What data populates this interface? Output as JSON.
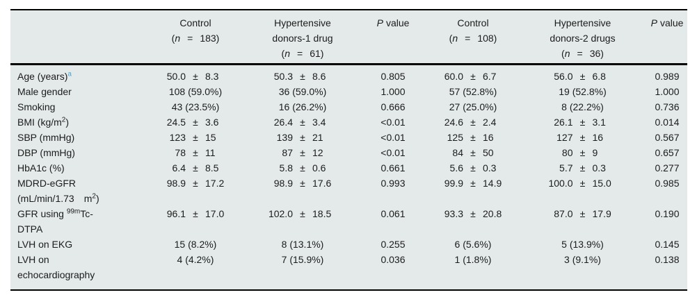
{
  "colors": {
    "table_background": "#e4eaea",
    "rule_color": "#000000",
    "text_color": "#1b1b1b",
    "footnote_marker_blue": "#4aa4cf"
  },
  "sym": {
    "pm": "±",
    "paren_open": "(",
    "paren_close": ")",
    "eq": "=",
    "n": "n"
  },
  "header": {
    "groups": [
      {
        "line1": "Control",
        "n": "183"
      },
      {
        "line1": "Hypertensive",
        "line2": "donors-1 drug",
        "n": "61"
      },
      {
        "line1": "Control",
        "n": "108"
      },
      {
        "line1": "Hypertensive",
        "line2": "donors-2 drugs",
        "n": "36"
      }
    ],
    "p1": {
      "p": "P",
      "label": "value"
    },
    "p2": {
      "p": "P",
      "label": "value"
    }
  },
  "rows": [
    {
      "label": "Age (years)",
      "label_sup": "a",
      "c1": {
        "m": "50.0",
        "s": "8.3"
      },
      "c2": {
        "m": "50.3",
        "s": "8.6"
      },
      "p1": "0.805",
      "c3": {
        "m": "60.0",
        "s": "6.7"
      },
      "c4": {
        "m": "56.0",
        "s": "6.8"
      },
      "p2": "0.989"
    },
    {
      "label": "Male gender",
      "c1": {
        "count": "108 (59.0%)"
      },
      "c2": {
        "count": "36 (59.0%)"
      },
      "p1": "1.000",
      "c3": {
        "count": "57 (52.8%)"
      },
      "c4": {
        "count": "19 (52.8%)"
      },
      "p2": "1.000"
    },
    {
      "label": "Smoking",
      "c1": {
        "count": "43 (23.5%)"
      },
      "c2": {
        "count": "16 (26.2%)"
      },
      "p1": "0.666",
      "c3": {
        "count": "27 (25.0%)"
      },
      "c4": {
        "count": "8 (22.2%)"
      },
      "p2": "0.736"
    },
    {
      "label": "BMI (kg/m",
      "label_sup": "2",
      "label_after": ")",
      "c1": {
        "m": "24.5",
        "s": "3.6"
      },
      "c2": {
        "m": "26.4",
        "s": "3.4"
      },
      "p1": "<0.01",
      "c3": {
        "m": "24.6",
        "s": "2.4"
      },
      "c4": {
        "m": "26.1",
        "s": "3.1"
      },
      "p2": "0.014"
    },
    {
      "label": "SBP (mmHg)",
      "c1": {
        "m": "123",
        "s": "15"
      },
      "c2": {
        "m": "139",
        "s": "21"
      },
      "p1": "<0.01",
      "c3": {
        "m": "125",
        "s": "16"
      },
      "c4": {
        "m": "127",
        "s": "16"
      },
      "p2": "0.567"
    },
    {
      "label": "DBP (mmHg)",
      "c1": {
        "m": "78",
        "s": "11"
      },
      "c2": {
        "m": "87",
        "s": "12"
      },
      "p1": "<0.01",
      "c3": {
        "m": "84",
        "s": "50"
      },
      "c4": {
        "m": "80",
        "s": "9"
      },
      "p2": "0.657"
    },
    {
      "label": "HbA1c (%)",
      "c1": {
        "m": "6.4",
        "s": "8.5"
      },
      "c2": {
        "m": "5.8",
        "s": "0.6"
      },
      "p1": "0.661",
      "c3": {
        "m": "5.6",
        "s": "0.3"
      },
      "c4": {
        "m": "5.7",
        "s": "0.3"
      },
      "p2": "0.277"
    },
    {
      "label_line1": "MDRD-eGFR",
      "label_line2_pre": "(mL/min/1.73",
      "label_line2_mid": "m",
      "label_sup": "2",
      "label_after": ")",
      "c1": {
        "m": "98.9",
        "s": "17.2"
      },
      "c2": {
        "m": "98.9",
        "s": "17.6"
      },
      "p1": "0.993",
      "c3": {
        "m": "99.9",
        "s": "14.9"
      },
      "c4": {
        "m": "100.0",
        "s": "15.0"
      },
      "p2": "0.985"
    },
    {
      "label_pre": "GFR using ",
      "label_sup": "99m",
      "label_mid": "Tc-",
      "label_line2": "DTPA",
      "c1": {
        "m": "96.1",
        "s": "17.0"
      },
      "c2": {
        "m": "102.0",
        "s": "18.5"
      },
      "p1": "0.061",
      "c3": {
        "m": "93.3",
        "s": "20.8"
      },
      "c4": {
        "m": "87.0",
        "s": "17.9"
      },
      "p2": "0.190"
    },
    {
      "label": "LVH on EKG",
      "c1": {
        "count": "15 (8.2%)"
      },
      "c2": {
        "count": "8 (13.1%)"
      },
      "p1": "0.255",
      "c3": {
        "count": "6 (5.6%)"
      },
      "c4": {
        "count": "5 (13.9%)"
      },
      "p2": "0.145"
    },
    {
      "label_line1": "LVH on",
      "label_line2": "echocardiography",
      "c1": {
        "count": "4 (4.2%)"
      },
      "c2": {
        "count": "7 (15.9%)"
      },
      "p1": "0.036",
      "c3": {
        "count": "1 (1.8%)"
      },
      "c4": {
        "count": "3 (9.1%)"
      },
      "p2": "0.138"
    }
  ]
}
